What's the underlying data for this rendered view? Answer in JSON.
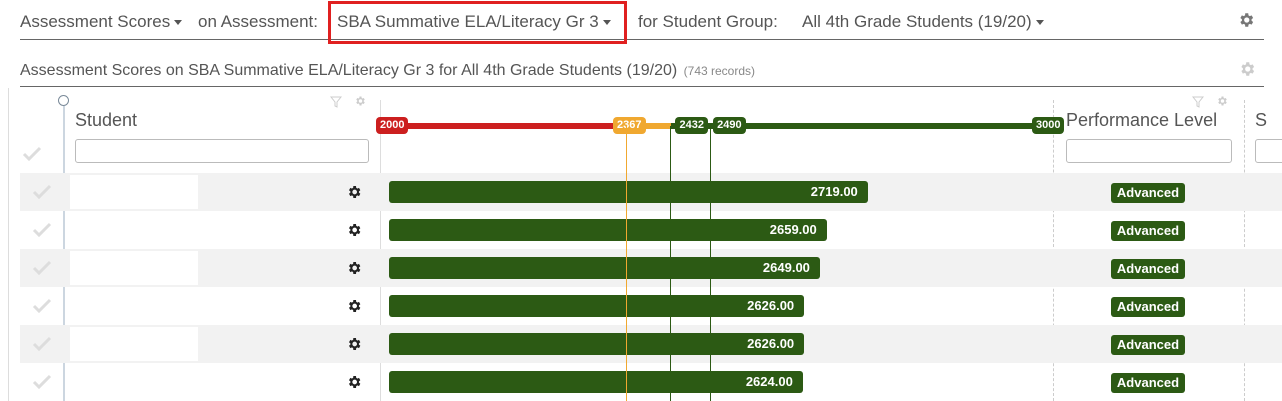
{
  "topbar": {
    "view_label": "Assessment Scores",
    "on_label": "on Assessment:",
    "assessment": "SBA Summative ELA/Literacy Gr 3",
    "group_prefix": "for Student Group:",
    "group": "All 4th Grade Students (19/20)"
  },
  "subtitle": {
    "text": "Assessment Scores on SBA Summative ELA/Literacy Gr 3 for All 4th Grade Students (19/20)",
    "records": "(743 records)"
  },
  "columns": {
    "student": "Student",
    "performance": "Performance Level",
    "next": "S"
  },
  "scale": {
    "min": 2000,
    "max": 3000,
    "labels": [
      "2000",
      "2367",
      "2432",
      "2490",
      "3000"
    ],
    "segments": [
      {
        "from": 2000,
        "to": 2367,
        "color": "#cc1f1f"
      },
      {
        "from": 2367,
        "to": 2432,
        "color": "#f0a830"
      },
      {
        "from": 2432,
        "to": 2490,
        "color": "#2c5a14"
      },
      {
        "from": 2490,
        "to": 3000,
        "color": "#2c5a14"
      }
    ],
    "label_colors": [
      "#cc1f1f",
      "#f0a830",
      "#2c5a14",
      "#2c5a14",
      "#2c5a14"
    ]
  },
  "rows": [
    {
      "score": "2719.00",
      "value": 2719,
      "level": "Advanced"
    },
    {
      "score": "2659.00",
      "value": 2659,
      "level": "Advanced"
    },
    {
      "score": "2649.00",
      "value": 2649,
      "level": "Advanced"
    },
    {
      "score": "2626.00",
      "value": 2626,
      "level": "Advanced"
    },
    {
      "score": "2626.00",
      "value": 2626,
      "level": "Advanced"
    },
    {
      "score": "2624.00",
      "value": 2624,
      "level": "Advanced"
    }
  ],
  "colors": {
    "advanced": "#2c5a14",
    "highlight": "#e02020",
    "ref_orange": "#f0a830",
    "ref_green": "#2c5a14"
  }
}
